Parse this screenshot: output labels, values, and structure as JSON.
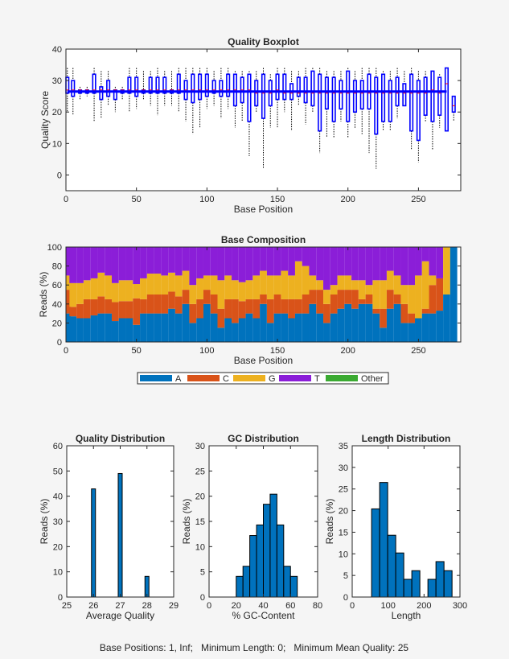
{
  "footer": "Base Positions: 1, Inf;   Minimum Length: 0;   Minimum Mean Quality: 25",
  "colors": {
    "box": "#0000FF",
    "median": "#FF0000",
    "whisker": "#000000",
    "hist": "#0072BD",
    "A": "#0072BD",
    "C": "#D95319",
    "G": "#EDB120",
    "T": "#8B1ED8",
    "Other": "#3BAA32"
  },
  "chart_data": [
    {
      "type": "boxplot",
      "title": "Quality Boxplot",
      "xlabel": "Base Position",
      "ylabel": "Quality Score",
      "xlim": [
        0,
        280
      ],
      "ylim": [
        -5,
        40
      ],
      "xticks": [
        0,
        50,
        100,
        150,
        200,
        250
      ],
      "yticks": [
        0,
        10,
        20,
        30,
        40
      ],
      "columns": [
        "position",
        "whisker_low",
        "q1",
        "median",
        "q3",
        "whisker_high"
      ],
      "boxes": [
        [
          1,
          20,
          26,
          27,
          31,
          34
        ],
        [
          5,
          19,
          25,
          27,
          30,
          34
        ],
        [
          10,
          24,
          26,
          27,
          27,
          28
        ],
        [
          15,
          25,
          26,
          27,
          27,
          28
        ],
        [
          20,
          17,
          26,
          27,
          32,
          34
        ],
        [
          25,
          18,
          24,
          27,
          28,
          33
        ],
        [
          30,
          22,
          25,
          27,
          30,
          33
        ],
        [
          35,
          20,
          24,
          27,
          27,
          28
        ],
        [
          40,
          24,
          26,
          27,
          27,
          28
        ],
        [
          45,
          20,
          26,
          27,
          31,
          34
        ],
        [
          50,
          21,
          25,
          27,
          31,
          34
        ],
        [
          55,
          24,
          26,
          27,
          27,
          33
        ],
        [
          60,
          22,
          26,
          27,
          31,
          33
        ],
        [
          65,
          19,
          26,
          27,
          31,
          34
        ],
        [
          70,
          22,
          26,
          27,
          31,
          33
        ],
        [
          75,
          22,
          26,
          27,
          27,
          33
        ],
        [
          80,
          20,
          26,
          27,
          32,
          34
        ],
        [
          85,
          17,
          24,
          27,
          30,
          34
        ],
        [
          90,
          13,
          23,
          27,
          32,
          34
        ],
        [
          95,
          15,
          24,
          27,
          32,
          34
        ],
        [
          100,
          21,
          25,
          27,
          32,
          34
        ],
        [
          105,
          22,
          26,
          27,
          30,
          33
        ],
        [
          110,
          18,
          25,
          27,
          30,
          34
        ],
        [
          115,
          21,
          25,
          27,
          32,
          34
        ],
        [
          120,
          15,
          22,
          27,
          32,
          33
        ],
        [
          125,
          17,
          23,
          27,
          31,
          33
        ],
        [
          130,
          6,
          17,
          27,
          32,
          33
        ],
        [
          135,
          20,
          22,
          26,
          30,
          33
        ],
        [
          140,
          2,
          18,
          26,
          32,
          34
        ],
        [
          145,
          15,
          22,
          26,
          30,
          32
        ],
        [
          150,
          15,
          24,
          27,
          32,
          34
        ],
        [
          155,
          20,
          24,
          26,
          32,
          34
        ],
        [
          160,
          14,
          24,
          26,
          29,
          33
        ],
        [
          165,
          22,
          25,
          26,
          31,
          33
        ],
        [
          170,
          16,
          23,
          26,
          31,
          34
        ],
        [
          175,
          20,
          22,
          26,
          33,
          34
        ],
        [
          180,
          7,
          14,
          26,
          32,
          34
        ],
        [
          185,
          12,
          21,
          26,
          31,
          33
        ],
        [
          190,
          12,
          17,
          26,
          31,
          33
        ],
        [
          195,
          17,
          21,
          26,
          30,
          33
        ],
        [
          200,
          12,
          17,
          26,
          33,
          34
        ],
        [
          205,
          15,
          20,
          26,
          30,
          33
        ],
        [
          210,
          13,
          21,
          26,
          30,
          34
        ],
        [
          215,
          7,
          21,
          26,
          32,
          34
        ],
        [
          220,
          2,
          13,
          26,
          31,
          34
        ],
        [
          225,
          14,
          17,
          26,
          32,
          33
        ],
        [
          230,
          14,
          17,
          26,
          30,
          33
        ],
        [
          235,
          18,
          22,
          26,
          31,
          34
        ],
        [
          240,
          22,
          22,
          26,
          29,
          33
        ],
        [
          245,
          8,
          14,
          26,
          32,
          34
        ],
        [
          250,
          4,
          11,
          26,
          30,
          33
        ],
        [
          255,
          17,
          19,
          26,
          31,
          33
        ],
        [
          260,
          8,
          17,
          27,
          33,
          33
        ],
        [
          265,
          15,
          19,
          26,
          31,
          32
        ],
        [
          270,
          14,
          14,
          29,
          34,
          34
        ],
        [
          275,
          17,
          20,
          22,
          25,
          25
        ]
      ]
    },
    {
      "type": "bar",
      "stacked": true,
      "title": "Base Composition",
      "xlabel": "Base Position",
      "ylabel": "Reads (%)",
      "xlim": [
        0,
        280
      ],
      "ylim": [
        0,
        100
      ],
      "xticks": [
        0,
        50,
        100,
        150,
        200,
        250
      ],
      "yticks": [
        0,
        20,
        40,
        60,
        80,
        100
      ],
      "legend": {
        "placement": "bottom",
        "entries": [
          "A",
          "C",
          "G",
          "T",
          "Other"
        ]
      },
      "x": [
        1,
        5,
        10,
        15,
        20,
        25,
        30,
        35,
        40,
        45,
        50,
        55,
        60,
        65,
        70,
        75,
        80,
        85,
        90,
        95,
        100,
        105,
        110,
        115,
        120,
        125,
        130,
        135,
        140,
        145,
        150,
        155,
        160,
        165,
        170,
        175,
        180,
        185,
        190,
        195,
        200,
        205,
        210,
        215,
        220,
        225,
        230,
        235,
        240,
        245,
        250,
        255,
        260,
        265,
        270,
        275
      ],
      "series": [
        {
          "name": "A",
          "values": [
            30,
            27,
            25,
            25,
            28,
            30,
            30,
            22,
            25,
            25,
            18,
            30,
            30,
            30,
            30,
            35,
            30,
            40,
            20,
            25,
            40,
            30,
            15,
            25,
            20,
            25,
            30,
            25,
            40,
            20,
            30,
            30,
            25,
            30,
            30,
            40,
            30,
            20,
            30,
            35,
            40,
            35,
            40,
            40,
            30,
            15,
            35,
            40,
            20,
            20,
            25,
            30,
            30,
            33,
            50,
            100
          ]
        },
        {
          "name": "C",
          "values": [
            25,
            10,
            15,
            20,
            17,
            18,
            15,
            20,
            18,
            18,
            28,
            15,
            20,
            20,
            20,
            18,
            18,
            15,
            20,
            20,
            15,
            20,
            20,
            20,
            25,
            18,
            15,
            20,
            10,
            25,
            20,
            15,
            20,
            15,
            20,
            15,
            25,
            20,
            20,
            20,
            15,
            20,
            5,
            10,
            5,
            20,
            20,
            10,
            20,
            10,
            0,
            5,
            30,
            34,
            0,
            0
          ]
        },
        {
          "name": "G",
          "values": [
            15,
            25,
            22,
            20,
            22,
            25,
            25,
            20,
            22,
            22,
            15,
            22,
            22,
            22,
            20,
            20,
            22,
            20,
            20,
            22,
            15,
            20,
            30,
            25,
            20,
            20,
            20,
            25,
            25,
            25,
            20,
            30,
            25,
            40,
            30,
            15,
            10,
            15,
            10,
            15,
            15,
            10,
            20,
            10,
            30,
            30,
            20,
            20,
            20,
            30,
            45,
            50,
            10,
            0,
            50,
            0
          ]
        },
        {
          "name": "T",
          "values": [
            30,
            38,
            38,
            35,
            33,
            27,
            30,
            38,
            35,
            35,
            39,
            33,
            28,
            28,
            30,
            27,
            30,
            25,
            40,
            33,
            30,
            30,
            35,
            30,
            35,
            37,
            35,
            30,
            25,
            30,
            30,
            25,
            30,
            15,
            20,
            30,
            35,
            45,
            40,
            30,
            30,
            35,
            35,
            40,
            35,
            35,
            25,
            30,
            40,
            40,
            30,
            15,
            30,
            33,
            0,
            0
          ]
        },
        {
          "name": "Other",
          "values": [
            0,
            0,
            0,
            0,
            0,
            0,
            0,
            0,
            0,
            0,
            0,
            0,
            0,
            0,
            0,
            0,
            0,
            0,
            0,
            0,
            0,
            0,
            0,
            0,
            0,
            0,
            0,
            0,
            0,
            0,
            0,
            0,
            0,
            0,
            0,
            0,
            0,
            0,
            0,
            0,
            0,
            0,
            0,
            0,
            0,
            0,
            0,
            0,
            0,
            0,
            0,
            0,
            0,
            0,
            0,
            0
          ]
        }
      ]
    },
    {
      "type": "bar",
      "title": "Quality Distribution",
      "xlabel": "Average Quality",
      "ylabel": "Reads (%)",
      "xlim": [
        25,
        29
      ],
      "ylim": [
        0,
        60
      ],
      "xticks": [
        25,
        26,
        27,
        28,
        29
      ],
      "yticks": [
        0,
        10,
        20,
        30,
        40,
        50,
        60
      ],
      "bin_width": 0.15,
      "x": [
        26,
        27,
        28
      ],
      "values": [
        42.9,
        49.0,
        8.2
      ]
    },
    {
      "type": "bar",
      "title": "GC Distribution",
      "xlabel": "% GC-Content",
      "ylabel": "Reads (%)",
      "xlim": [
        0,
        80
      ],
      "ylim": [
        0,
        30
      ],
      "xticks": [
        0,
        20,
        40,
        60,
        80
      ],
      "yticks": [
        0,
        5,
        10,
        15,
        20,
        25,
        30
      ],
      "bin_width": 5,
      "x": [
        22.5,
        27.5,
        32.5,
        37.5,
        42.5,
        47.5,
        52.5,
        57.5,
        62.5
      ],
      "values": [
        4.1,
        6.1,
        12.2,
        14.3,
        18.4,
        20.4,
        14.3,
        6.1,
        4.1
      ]
    },
    {
      "type": "bar",
      "title": "Length Distribution",
      "xlabel": "Length",
      "ylabel": "Reads (%)",
      "xlim": [
        0,
        300
      ],
      "ylim": [
        0,
        35
      ],
      "xticks": [
        0,
        100,
        200,
        300
      ],
      "yticks": [
        0,
        5,
        10,
        15,
        20,
        25,
        30,
        35
      ],
      "bin_width": 22.4,
      "x": [
        65.2,
        87.6,
        110,
        132.4,
        154.8,
        177.2,
        199.6,
        222,
        244.4,
        266.8
      ],
      "values": [
        20.4,
        26.5,
        14.3,
        10.2,
        4.1,
        6.1,
        0,
        4.1,
        8.2,
        6.1
      ]
    }
  ]
}
